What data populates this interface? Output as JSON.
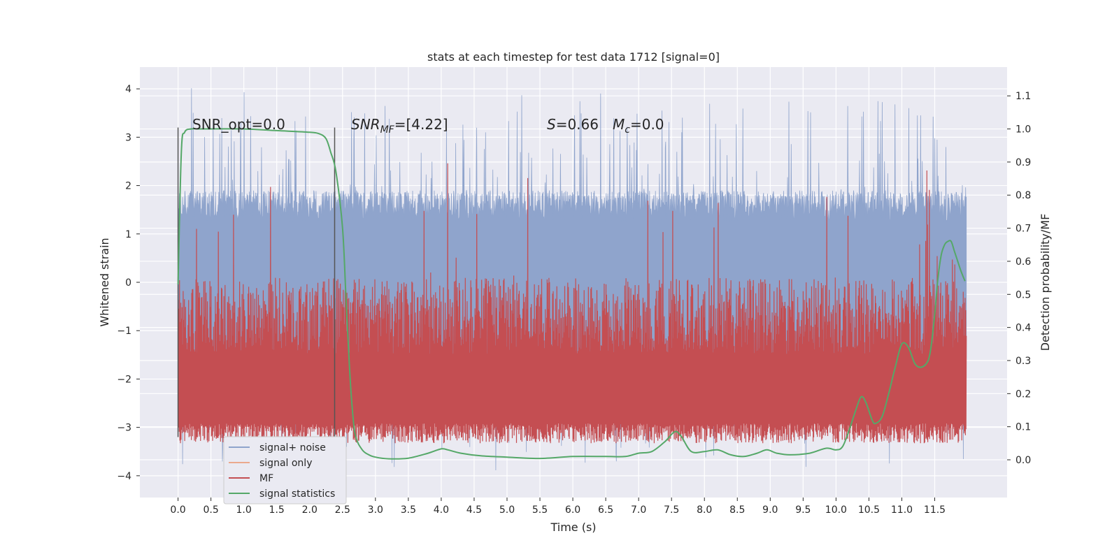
{
  "chart_data": {
    "type": "line",
    "title": "stats at each timestep for test data 1712 [signal=0]",
    "xlabel": "Time (s)",
    "ylabel": "Whitened strain",
    "y2label": "Detection probability/MF",
    "xlim": [
      -0.58,
      12.6
    ],
    "ylim": [
      -4.45,
      4.45
    ],
    "y2lim": [
      -0.114,
      1.187
    ],
    "xticks": [
      "0.0",
      "0.5",
      "1.0",
      "1.5",
      "2.0",
      "2.5",
      "3.0",
      "3.5",
      "4.0",
      "4.5",
      "5.0",
      "5.5",
      "6.0",
      "6.5",
      "7.0",
      "7.5",
      "8.0",
      "8.5",
      "9.0",
      "9.5",
      "10.0",
      "10.5",
      "11.0",
      "11.5"
    ],
    "yticks": [
      "4",
      "3",
      "2",
      "1",
      "0",
      "−1",
      "−2",
      "−3",
      "−4"
    ],
    "y2ticks": [
      "1.1",
      "1.0",
      "0.9",
      "0.8",
      "0.7",
      "0.6",
      "0.5",
      "0.4",
      "0.3",
      "0.2",
      "0.1",
      "0.0"
    ],
    "grid": true,
    "legend_position": "lower-left",
    "vlines_x": [
      0.0,
      2.38
    ],
    "vlines_yrange": [
      -3.2,
      3.2
    ],
    "annotations": {
      "snr_opt": "SNR_opt=0.0",
      "snr_mf_name": "SNR",
      "snr_mf_sub": "MF",
      "snr_mf_value": "=[4.22]",
      "s_name": "S",
      "s_value": "=0.66",
      "mc_name": "M",
      "mc_sub": "c",
      "mc_value": "=0.0"
    },
    "noise_params": {
      "t_start": 0.0,
      "t_end": 11.98,
      "samples": 2400,
      "core_high": 1.25,
      "core_low": -1.3,
      "envelope_high": 1.9,
      "envelope_low": -2.5,
      "max_peak": 4.08,
      "min_peak": -4.07
    },
    "mf_params": {
      "baseline": 0.05,
      "typical_max": 0.55,
      "max_peak": 0.95
    },
    "series": [
      {
        "name": "signal+ noise",
        "axis": "left",
        "color": "#8fa4cc"
      },
      {
        "name": "signal only",
        "axis": "left",
        "color": "#eba98d",
        "values": []
      },
      {
        "name": "MF",
        "axis": "right",
        "color": "#c44e52"
      },
      {
        "name": "signal statistics",
        "axis": "right",
        "color": "#55a868",
        "x": [
          0.0,
          0.05,
          0.1,
          0.2,
          0.3,
          0.5,
          1.0,
          1.5,
          2.0,
          2.15,
          2.25,
          2.32,
          2.4,
          2.5,
          2.55,
          2.6,
          2.65,
          2.7,
          2.8,
          2.9,
          3.0,
          3.2,
          3.5,
          3.8,
          4.0,
          4.1,
          4.3,
          4.6,
          5.0,
          5.5,
          6.0,
          6.5,
          6.8,
          7.0,
          7.2,
          7.4,
          7.55,
          7.65,
          7.8,
          8.0,
          8.2,
          8.4,
          8.6,
          8.8,
          8.95,
          9.1,
          9.3,
          9.6,
          9.85,
          10.0,
          10.1,
          10.2,
          10.3,
          10.38,
          10.45,
          10.55,
          10.6,
          10.7,
          10.8,
          10.9,
          11.0,
          11.1,
          11.2,
          11.3,
          11.4,
          11.45,
          11.5,
          11.55,
          11.6,
          11.65,
          11.7,
          11.75,
          11.8,
          11.85,
          11.9,
          11.96
        ],
        "values": [
          0.53,
          0.93,
          0.99,
          1.0,
          1.0,
          1.0,
          1.0,
          0.995,
          0.99,
          0.985,
          0.97,
          0.93,
          0.87,
          0.7,
          0.5,
          0.3,
          0.15,
          0.07,
          0.03,
          0.015,
          0.008,
          0.003,
          0.005,
          0.02,
          0.033,
          0.03,
          0.02,
          0.012,
          0.008,
          0.004,
          0.01,
          0.01,
          0.01,
          0.02,
          0.025,
          0.055,
          0.085,
          0.07,
          0.025,
          0.025,
          0.03,
          0.015,
          0.01,
          0.02,
          0.03,
          0.02,
          0.015,
          0.02,
          0.035,
          0.03,
          0.04,
          0.09,
          0.15,
          0.19,
          0.175,
          0.12,
          0.11,
          0.13,
          0.2,
          0.28,
          0.35,
          0.34,
          0.29,
          0.28,
          0.3,
          0.35,
          0.44,
          0.55,
          0.62,
          0.65,
          0.66,
          0.66,
          0.63,
          0.6,
          0.57,
          0.54
        ]
      }
    ]
  }
}
